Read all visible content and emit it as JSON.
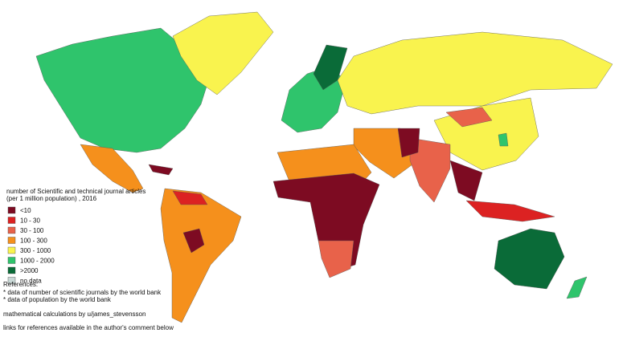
{
  "legend": {
    "title": [
      "number of Scientific and technical journal articles",
      "(per 1 million population) , 2016"
    ],
    "items": [
      {
        "label": "<10",
        "color": "#7d0b22"
      },
      {
        "label": "10 - 30",
        "color": "#dc2222"
      },
      {
        "label": "30 - 100",
        "color": "#e8624a"
      },
      {
        "label": "100 - 300",
        "color": "#f5901c"
      },
      {
        "label": "300 - 1000",
        "color": "#f9f34e"
      },
      {
        "label": "1000 - 2000",
        "color": "#2fc46c"
      },
      {
        "label": ">2000",
        "color": "#0a6b38"
      },
      {
        "label": "no data",
        "color": "#c9d8d6"
      }
    ]
  },
  "notes": [
    "References:",
    "* data of number of scientific journals by the world bank",
    "* data of population by the world bank",
    "mathematical calculations by u/james_stevensson",
    "links for references available in the author's comment below"
  ]
}
